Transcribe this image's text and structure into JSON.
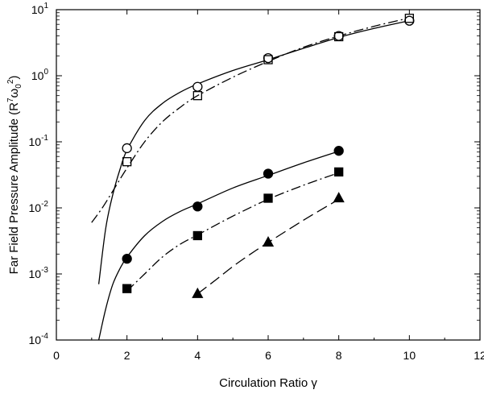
{
  "chart_data": {
    "type": "scatter",
    "title": "",
    "xlabel": "Circulation Ratio γ",
    "ylabel_main": "Far Field Pressure Amplitude (R",
    "ylabel_sup1": "7",
    "ylabel_omega": "ω",
    "ylabel_sub": "0",
    "ylabel_sup2": "2",
    "ylabel_close": ")",
    "xlim": [
      0,
      12
    ],
    "ylim": [
      0.0001,
      10
    ],
    "yscale": "log",
    "grid": false,
    "x_ticks": [
      {
        "value": 0,
        "label": "0"
      },
      {
        "value": 2,
        "label": "2"
      },
      {
        "value": 4,
        "label": "4"
      },
      {
        "value": 6,
        "label": "6"
      },
      {
        "value": 8,
        "label": "8"
      },
      {
        "value": 10,
        "label": "10"
      },
      {
        "value": 12,
        "label": "12"
      }
    ],
    "y_ticks": [
      {
        "value": 10,
        "base": "10",
        "exp": "1"
      },
      {
        "value": 1,
        "base": "10",
        "exp": "0"
      },
      {
        "value": 0.1,
        "base": "10",
        "exp": "-1"
      },
      {
        "value": 0.01,
        "base": "10",
        "exp": "-2"
      },
      {
        "value": 0.001,
        "base": "10",
        "exp": "-3"
      },
      {
        "value": 0.0001,
        "base": "10",
        "exp": "-4"
      }
    ],
    "series": [
      {
        "marker": "open-circle",
        "line": "solid",
        "points": [
          [
            2,
            0.08
          ],
          [
            4,
            0.68
          ],
          [
            6,
            1.85
          ],
          [
            8,
            4.0
          ],
          [
            10,
            6.8
          ]
        ],
        "curve": [
          [
            1.2,
            0.0007
          ],
          [
            1.4,
            0.005
          ],
          [
            1.6,
            0.016
          ],
          [
            1.8,
            0.038
          ],
          [
            2.0,
            0.075
          ],
          [
            2.5,
            0.21
          ],
          [
            3.0,
            0.38
          ],
          [
            3.5,
            0.56
          ],
          [
            4.0,
            0.75
          ],
          [
            5.0,
            1.2
          ],
          [
            6.0,
            1.75
          ],
          [
            7.0,
            2.6
          ],
          [
            8.0,
            3.8
          ],
          [
            9.0,
            5.2
          ],
          [
            10.0,
            6.8
          ]
        ]
      },
      {
        "marker": "open-square",
        "line": "dash-dot",
        "points": [
          [
            2,
            0.05
          ],
          [
            4,
            0.5
          ],
          [
            6,
            1.75
          ],
          [
            8,
            3.9
          ],
          [
            10,
            7.4
          ]
        ],
        "curve": [
          [
            1.0,
            0.006
          ],
          [
            1.3,
            0.01
          ],
          [
            1.6,
            0.018
          ],
          [
            2.0,
            0.04
          ],
          [
            2.5,
            0.1
          ],
          [
            3.0,
            0.2
          ],
          [
            3.5,
            0.33
          ],
          [
            4.0,
            0.5
          ],
          [
            5.0,
            0.95
          ],
          [
            6.0,
            1.65
          ],
          [
            7.0,
            2.7
          ],
          [
            8.0,
            4.0
          ],
          [
            9.0,
            5.6
          ],
          [
            10.0,
            7.5
          ]
        ]
      },
      {
        "marker": "filled-circle",
        "line": "solid",
        "points": [
          [
            2,
            0.0017
          ],
          [
            4,
            0.0105
          ],
          [
            6,
            0.033
          ],
          [
            8,
            0.073
          ]
        ],
        "curve": [
          [
            1.2,
            0.0001
          ],
          [
            1.4,
            0.0003
          ],
          [
            1.6,
            0.0007
          ],
          [
            1.8,
            0.0012
          ],
          [
            2.0,
            0.0018
          ],
          [
            2.5,
            0.0038
          ],
          [
            3.0,
            0.0062
          ],
          [
            3.5,
            0.0088
          ],
          [
            4.0,
            0.0115
          ],
          [
            5.0,
            0.02
          ],
          [
            6.0,
            0.031
          ],
          [
            7.0,
            0.048
          ],
          [
            8.0,
            0.072
          ]
        ]
      },
      {
        "marker": "filled-square",
        "line": "dash-dot",
        "points": [
          [
            2,
            0.0006
          ],
          [
            4,
            0.0038
          ],
          [
            6,
            0.014
          ],
          [
            8,
            0.035
          ]
        ],
        "curve": [
          [
            2.0,
            0.00055
          ],
          [
            2.5,
            0.001
          ],
          [
            3.0,
            0.0018
          ],
          [
            3.5,
            0.0028
          ],
          [
            4.0,
            0.0039
          ],
          [
            5.0,
            0.0075
          ],
          [
            6.0,
            0.0135
          ],
          [
            7.0,
            0.022
          ],
          [
            8.0,
            0.034
          ]
        ]
      },
      {
        "marker": "filled-triangle",
        "line": "long-dash",
        "points": [
          [
            4,
            0.0005
          ],
          [
            6,
            0.003
          ],
          [
            8,
            0.014
          ]
        ],
        "curve": [
          [
            4.0,
            0.0005
          ],
          [
            4.5,
            0.0008
          ],
          [
            5.0,
            0.0013
          ],
          [
            5.5,
            0.002
          ],
          [
            6.0,
            0.003
          ],
          [
            7.0,
            0.0065
          ],
          [
            8.0,
            0.0135
          ]
        ]
      }
    ]
  }
}
